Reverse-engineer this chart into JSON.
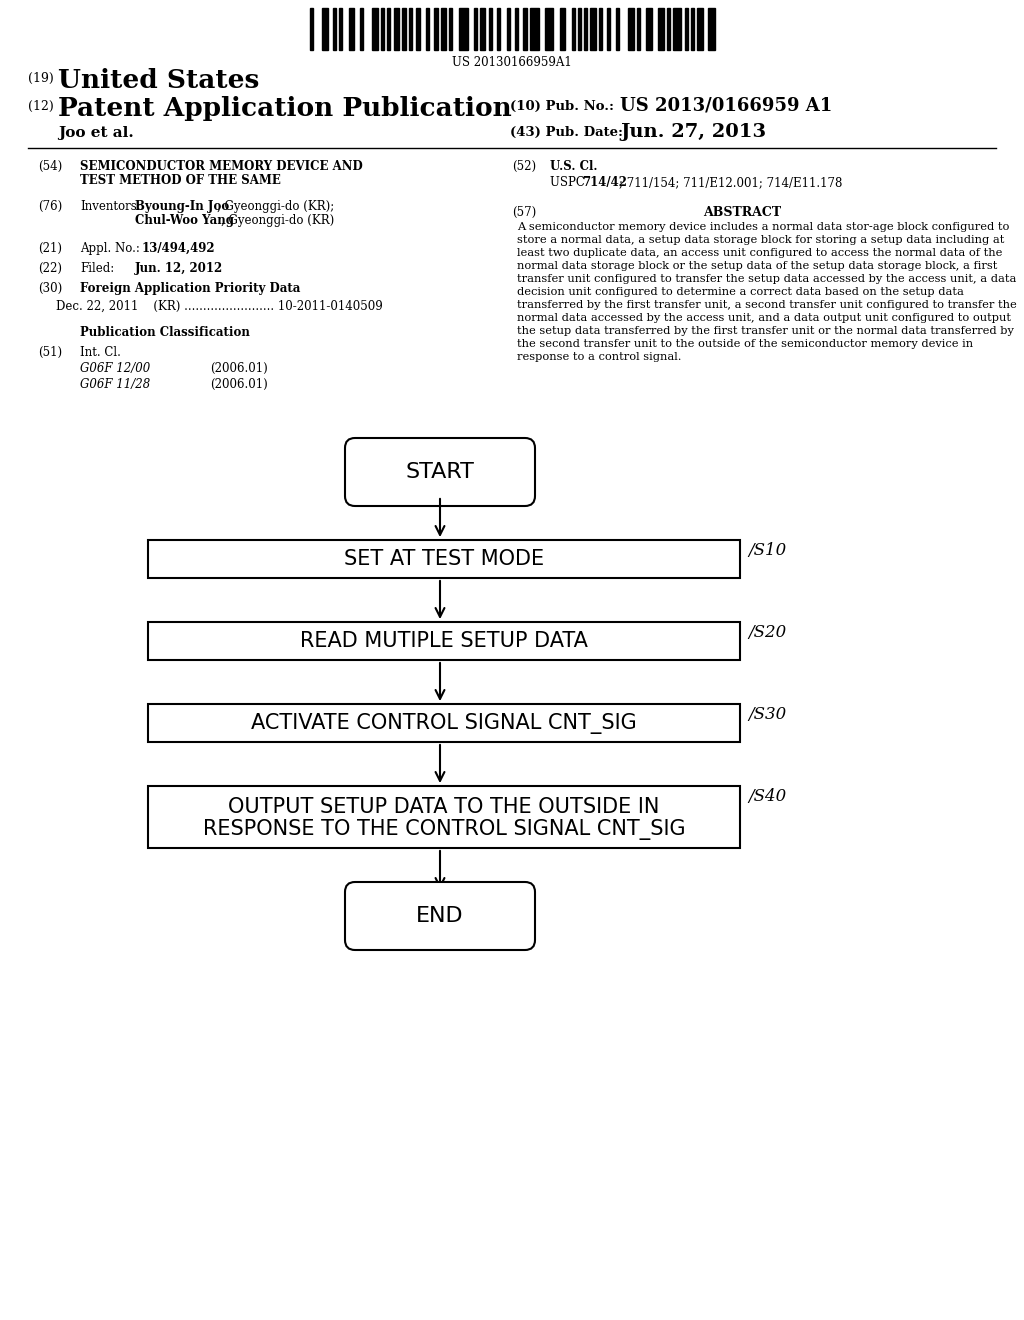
{
  "bg_color": "#ffffff",
  "barcode_text": "US 20130166959A1",
  "title_line1": "SEMICONDUCTOR MEMORY DEVICE AND",
  "title_line2": "TEST METHOD OF THE SAME",
  "country_num": "(19)",
  "country": "United States",
  "app_type_num": "(12)",
  "app_type": "Patent Application Publication",
  "pub_num_label": "(10) Pub. No.:",
  "pub_num": "US 2013/0166959 A1",
  "authors": "Joo et al.",
  "pub_date_label": "(43) Pub. Date:",
  "pub_date": "Jun. 27, 2013",
  "sec54_num": "(54)",
  "sec54_line1": "SEMICONDUCTOR MEMORY DEVICE AND",
  "sec54_line2": "TEST METHOD OF THE SAME",
  "sec76_num": "(76)",
  "sec76_label": "Inventors:",
  "inv1_bold": "Byoung-In Joo",
  "inv1_rest": ", Gyeonggi-do (KR);",
  "inv2_bold": "Chul-Woo Yang",
  "inv2_rest": ", Gyeonggi-do (KR)",
  "sec21_num": "(21)",
  "sec21_label": "Appl. No.:",
  "sec21_val": "13/494,492",
  "sec22_num": "(22)",
  "sec22_label": "Filed:",
  "sec22_val": "Jun. 12, 2012",
  "sec30_num": "(30)",
  "sec30_label": "Foreign Application Priority Data",
  "sec30_data": "Dec. 22, 2011    (KR) ........................ 10-2011-0140509",
  "pub_class_label": "Publication Classification",
  "sec51_num": "(51)",
  "sec51_label": "Int. Cl.",
  "int_cl_1": "G06F 12/00",
  "int_cl_1_date": "(2006.01)",
  "int_cl_2": "G06F 11/28",
  "int_cl_2_date": "(2006.01)",
  "sec52_num": "(52)",
  "sec52_label": "U.S. Cl.",
  "sec52_val_pre": "USPC  ",
  "sec52_val_bold": "714/42",
  "sec52_val_rest": "; 711/154; 711/E12.001; 714/E11.178",
  "sec57_num": "(57)",
  "sec57_label": "ABSTRACT",
  "abstract": "A semiconductor memory device includes a normal data stor-age block configured to store a normal data, a setup data storage block for storing a setup data including at least two duplicate data, an access unit configured to access the normal data of the normal data storage block or the setup data of the setup data storage block, a first transfer unit configured to transfer the setup data accessed by the access unit, a data decision unit configured to determine a correct data based on the setup data transferred by the first transfer unit, a second transfer unit configured to transfer the normal data accessed by the access unit, and a data output unit configured to output the setup data transferred by the first transfer unit or the normal data transferred by the second transfer unit to the outside of the semiconductor memory device in response to a control signal.",
  "start_label": "START",
  "end_label": "END",
  "s10_id": "S10",
  "s10_label": "SET AT TEST MODE",
  "s20_id": "S20",
  "s20_label": "READ MUTIPLE SETUP DATA",
  "s30_id": "S30",
  "s30_label": "ACTIVATE CONTROL SIGNAL CNT_SIG",
  "s40_id": "S40",
  "s40_line1": "OUTPUT SETUP DATA TO THE OUTSIDE IN",
  "s40_line2": "RESPONSE TO THE CONTROL SIGNAL CNT_SIG"
}
